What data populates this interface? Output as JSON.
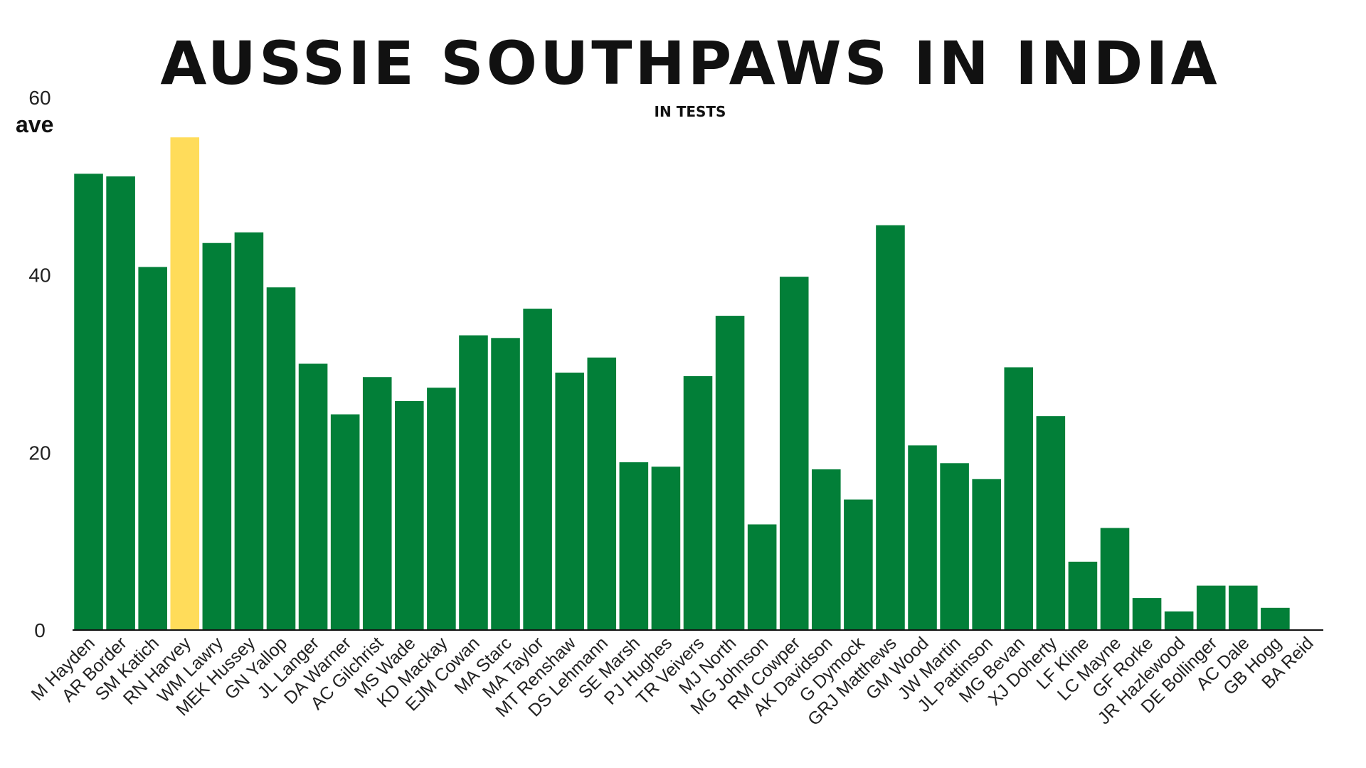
{
  "chart_data": {
    "type": "bar",
    "title": "AUSSIE SOUTHPAWS IN INDIA",
    "subtitle": "IN TESTS",
    "ylabel": "ave",
    "xlabel": "",
    "ylim": [
      0,
      60
    ],
    "yticks": [
      0,
      20,
      40,
      60
    ],
    "grid": false,
    "legend": "none",
    "colors": {
      "bar": "#027F38",
      "highlight": "#FFDC5A",
      "axis": "#111111"
    },
    "highlight_category": "RN Harvey",
    "categories": [
      "M Hayden",
      "AR Border",
      "SM Katich",
      "RN Harvey",
      "WM Lawry",
      "MEK Hussey",
      "GN Yallop",
      "JL Langer",
      "DA Warner",
      "AC Gilchrist",
      "MS Wade",
      "KD Mackay",
      "EJM Cowan",
      "MA Starc",
      "MA Taylor",
      "MT Renshaw",
      "DS Lehmann",
      "SE Marsh",
      "PJ Hughes",
      "TR Veivers",
      "MJ North",
      "MG Johnson",
      "RM Cowper",
      "AK Davidson",
      "G Dymock",
      "GRJ Matthews",
      "GM Wood",
      "JW Martin",
      "JL Pattinson",
      "MG Bevan",
      "XJ Doherty",
      "LF Kline",
      "LC Mayne",
      "GF Rorke",
      "JR Hazlewood",
      "DE Bollinger",
      "AC Dale",
      "GB Hogg",
      "BA Reid"
    ],
    "values": [
      51.4,
      51.1,
      40.9,
      55.5,
      43.6,
      44.8,
      38.6,
      30.0,
      24.3,
      28.5,
      25.8,
      27.3,
      33.2,
      32.9,
      36.2,
      29.0,
      30.7,
      18.9,
      18.4,
      28.6,
      35.4,
      11.9,
      39.8,
      18.1,
      14.7,
      45.6,
      20.8,
      18.8,
      17.0,
      29.6,
      24.1,
      7.7,
      11.5,
      3.6,
      2.1,
      5.0,
      5.0,
      2.5,
      0.0
    ]
  }
}
